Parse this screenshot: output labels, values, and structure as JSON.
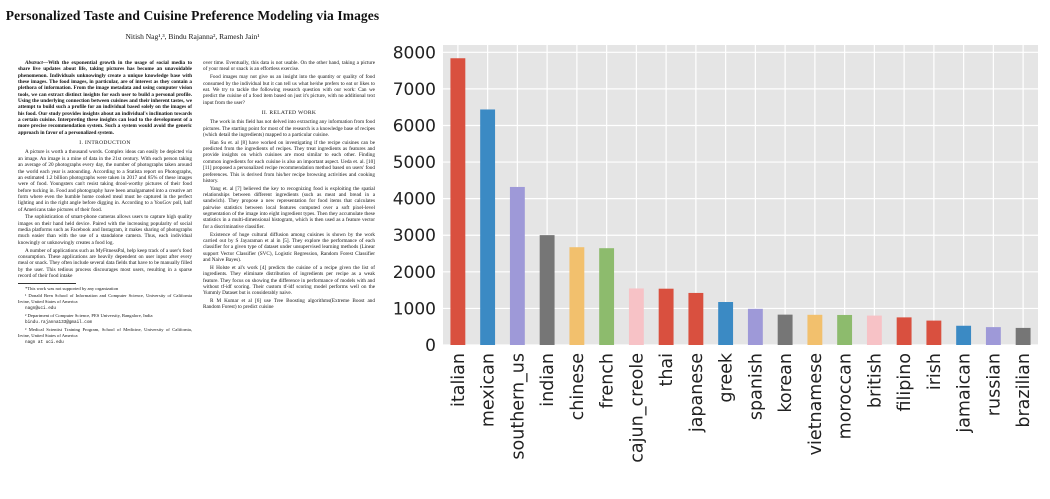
{
  "paper": {
    "title": "Personalized Taste and Cuisine Preference Modeling via Images",
    "authors": "Nitish Nag¹,³, Bindu Rajanna², Ramesh Jain¹",
    "abstract_label": "Abstract",
    "abstract": "—With the exponential growth in the usage of social media to share live updates about life, taking pictures has become an unavoidable phenomenon. Individuals unknowingly create a unique knowledge base with these images. The food images, in particular, are of interest as they contain a plethora of information. From the image metadata and using computer vision tools, we can extract distinct insights for each user to build a personal profile. Using the underlying connection between cuisines and their inherent tastes, we attempt to build such a profile for an individual based solely on the images of his food. Our study provides insights about an individual's inclination towards a certain cuisine. Interpreting these insights can lead to the development of a more precise recommendation system. Such a system would avoid the generic approach in favor of a personalized system.",
    "sec1_title": "I. INTRODUCTION",
    "intro_p1": "A picture is worth a thousand words. Complex ideas can easily be depicted via an image. An image is a mine of data in the 21st century. With each person taking an average of 20 photographs every day, the number of photographs taken around the world each year is astounding. According to a Statista report on Photographs, an estimated 1.2 billion photographs were taken in 2017 and 85% of these images were of food. Youngsters can't resist taking drool-worthy pictures of their food before tucking in. Food and photography have been amalgamated into a creative art form where even the humble home cooked meal must be captured in the perfect lighting and in the right angle before digging in. According to a YouGov poll, half of Americans take pictures of their food.",
    "intro_p2": "The sophistication of smart-phone cameras allows users to capture high quality images on their hand held device. Paired with the increasing popularity of social media platforms such as Facebook and Instagram, it makes sharing of photographs much easier than with the use of a standalone camera. Thus, each individual knowingly or unknowingly creates a food log.",
    "intro_p3": "A number of applications such as MyFitnessPal, help keep track of a user's food consumption. These applications are heavily dependent on user input after every meal or snack. They often include several data fields that have to be manually filled by the user. This tedious process discourages most users, resulting in a sparse record of their food intake",
    "footnotes": [
      "*This work was not supported by any organization",
      "¹ Donald Bren School of Information and Computer Science, University of California Irvine, United States of America",
      "nagn@uci.edu",
      "² Department of Computer Science, PES University, Bangalore, India",
      "bindu.rajanna133@gmail.com",
      "³ Medical Scientist Training Program, School of Medicine, University of California, Irvine, United States of America",
      "nagn at uci.edu"
    ],
    "right_p1": "over time. Eventually, this data is not usable. On the other hand, taking a picture of your meal or snack is an effortless exercise.",
    "right_p2": "Food images may not give us an insight into the quantity or quality of food consumed by the individual but it can tell us what he/she prefers to eat or likes to eat. We try to tackle the following research question with our work: Can we predict the cuisine of a food item based on just it's picture, with no additional text input from the user?",
    "sec2_title": "II. RELATED WORK",
    "related_p1": "The work in this field has not delved into extracting any information from food pictures. The starting point for most of the research is a knowledge base of recipes (which detail the ingredients) mapped to a particular cuisine.",
    "related_p2": "Han Su et. al [8] have worked on investigating if the recipe cuisines can be predicted from the ingredients of recipes. They treat ingredients as features and provide insights on which cuisines are most similar to each other. Finding common ingredients for each cuisine is also an important aspect. Ueda et. al. [10] [11] proposed a personalized recipe recommendation method based on users' food preferences. This is derived from his/her recipe browsing activities and cooking history.",
    "related_p3": "Yang et. al [7] believed the key to recognizing food is exploiting the spatial relationships between different ingredients (such as meat and bread in a sandwich). They propose a new representation for food items that calculates pairwise statistics between local features computed over a soft pixel-level segmentation of the image into eight ingredient types. Then they accumulate these statistics in a multi-dimensional histogram, which is then used as a feature vector for a discriminative classifier.",
    "related_p4": "Existence of huge cultural diffusion among cuisines is shown by the work carried out by S Jayaraman et al in [5]. They explore the performance of each classifier for a given type of dataset under unsupervised learning methods (Linear support Vector Classifier (SVC), Logistic Regression, Random Forest Classifier and Naive Bayes).",
    "related_p5": "H Holste et al's work [4] predicts the cuisine of a recipe given the list of ingredients. They eliminate distribution of ingredients per recipe as a weak feature. They focus on showing the difference in performance of models with and without tf-idf scoring. Their custom tf-idf scoring model performs well on the Yummly Dataset but is considerably naive.",
    "related_p6": "R M Kumar et al [6] use Tree Boosting algorithms(Extreme Boost and Random Forest) to predict cuisine"
  },
  "chart_data": {
    "type": "bar",
    "title": "",
    "xlabel": "",
    "ylabel": "",
    "categories": [
      "italian",
      "mexican",
      "southern_us",
      "indian",
      "chinese",
      "french",
      "cajun_creole",
      "thai",
      "japanese",
      "greek",
      "spanish",
      "korean",
      "vietnamese",
      "moroccan",
      "british",
      "filipino",
      "irish",
      "jamaican",
      "russian",
      "brazilian"
    ],
    "values": [
      7838,
      6438,
      4320,
      3003,
      2673,
      2646,
      1546,
      1539,
      1423,
      1175,
      989,
      830,
      825,
      821,
      804,
      755,
      667,
      526,
      489,
      467
    ],
    "colors": [
      "#d9503f",
      "#3b8ac4",
      "#9e99d8",
      "#767676",
      "#f2c06d",
      "#8dbb6d",
      "#f7c2c6",
      "#d9503f",
      "#d9503f",
      "#3b8ac4",
      "#9e99d8",
      "#767676",
      "#f2c06d",
      "#8dbb6d",
      "#f7c2c6",
      "#d9503f",
      "#d9503f",
      "#3b8ac4",
      "#9e99d8",
      "#767676"
    ],
    "yticks": [
      0,
      1000,
      2000,
      3000,
      4000,
      5000,
      6000,
      7000,
      8000
    ],
    "ylim": [
      0,
      8200
    ],
    "grid": true,
    "background": "#e5e5e5",
    "grid_color": "#ffffff"
  }
}
